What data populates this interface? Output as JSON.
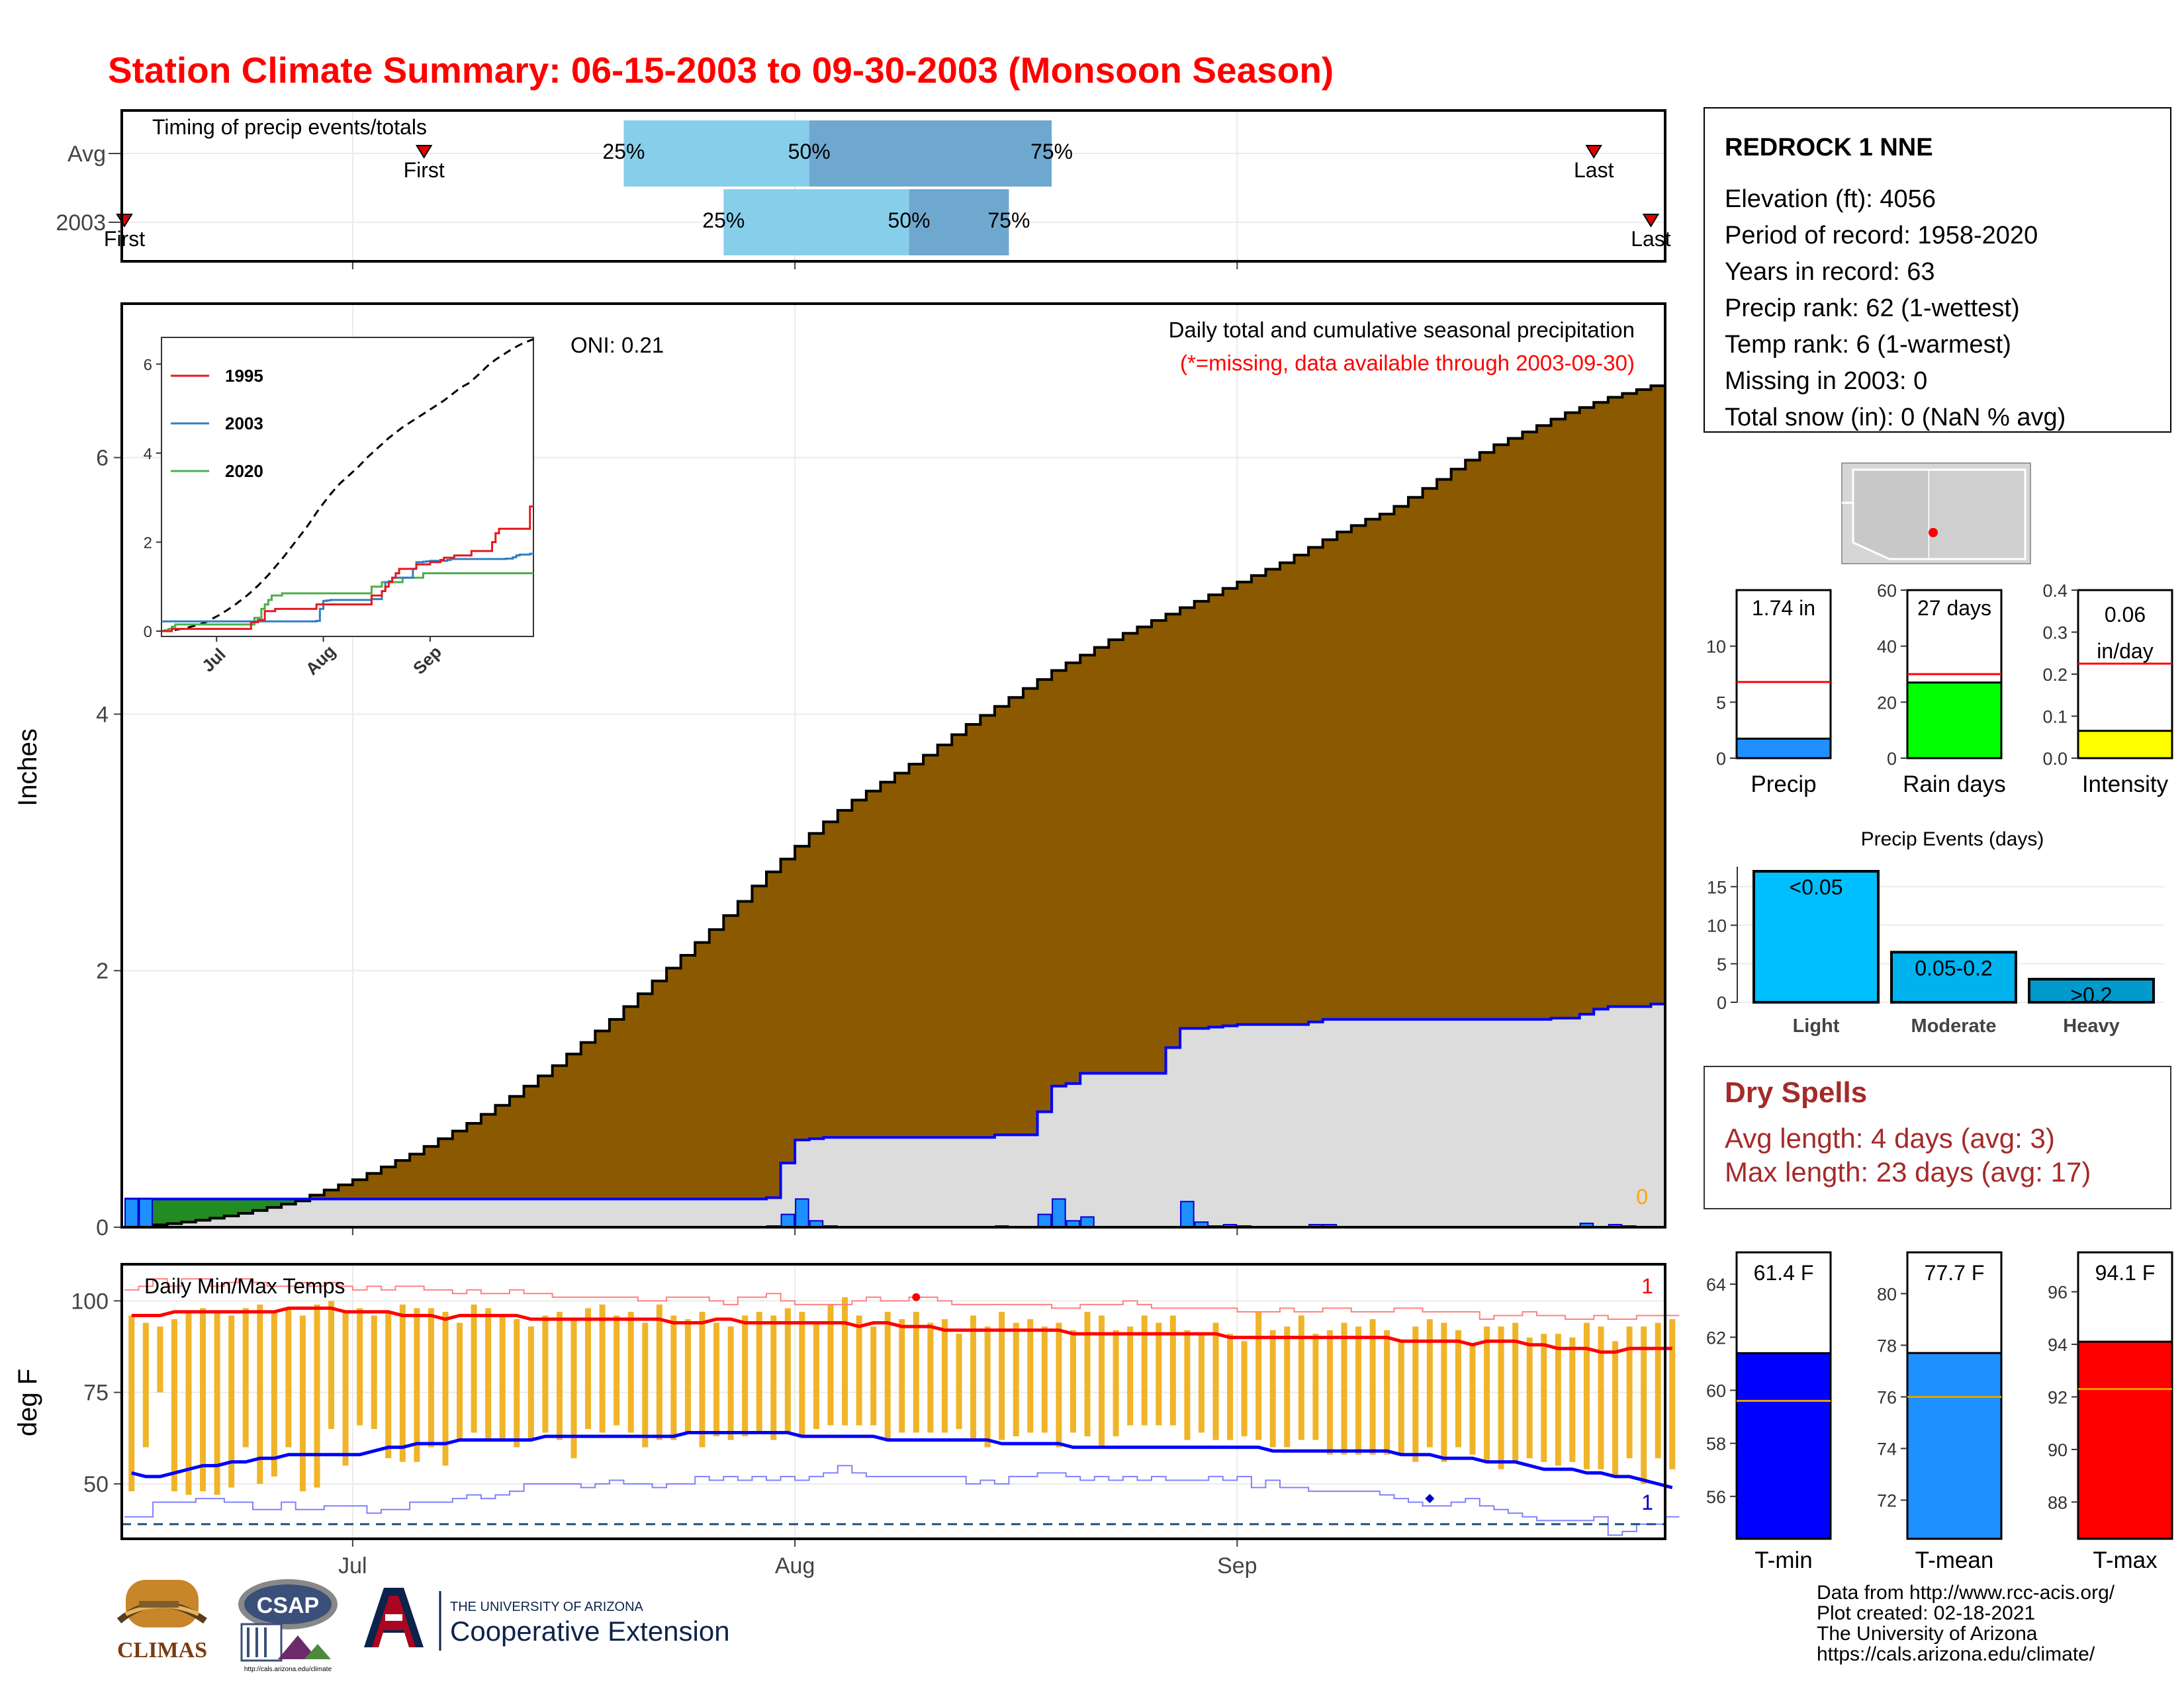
{
  "title": "Station Climate Summary: 06-15-2003 to 09-30-2003 (Monsoon Season)",
  "timing_panel": {
    "label": "Timing of precip events/totals",
    "rows": [
      {
        "name": "Avg",
        "first": "First",
        "last": "Last",
        "first_day": 21,
        "last_day": 103,
        "q25_day": 35,
        "q50_day": 48,
        "q75_day": 65,
        "q25_label": "25%",
        "q50_label": "50%",
        "q75_label": "75%"
      },
      {
        "name": "2003",
        "first": "First",
        "last": "Last",
        "first_day": 0,
        "last_day": 107,
        "q25_day": 42,
        "q50_day": 55,
        "q75_day": 62,
        "q25_label": "25%",
        "q50_label": "50%",
        "q75_label": "75%"
      }
    ]
  },
  "station_box": {
    "name": "REDROCK 1 NNE",
    "lines": [
      "Elevation (ft): 4056",
      "Period of record: 1958-2020",
      "Years in record: 63",
      "Precip rank: 62 (1-wettest)",
      "Temp rank: 6 (1-warmest)",
      "Missing in 2003: 0",
      "Total snow (in): 0 (NaN % avg)"
    ]
  },
  "main_panel": {
    "ylabel": "Inches",
    "annotation_title": "Daily total and cumulative seasonal precipitation",
    "annotation_missing": "(*=missing, data available through 2003-09-30)",
    "oni": "ONI: 0.21",
    "missing_count": "0",
    "yticks": [
      "0",
      "2",
      "4",
      "6"
    ],
    "xticks": [
      "Jul",
      "Aug",
      "Sep"
    ]
  },
  "inset": {
    "yticks": [
      "0",
      "2",
      "4",
      "6"
    ],
    "xticks": [
      "Jul",
      "Aug",
      "Sep"
    ],
    "legend": [
      {
        "name": "1995",
        "color": "#e31a1c"
      },
      {
        "name": "2003",
        "color": "#2f7fc1"
      },
      {
        "name": "2020",
        "color": "#4daf4a"
      }
    ]
  },
  "temp_panel": {
    "label": "Daily Min/Max Temps",
    "ylabel": "deg F",
    "yticks": [
      "50",
      "75",
      "100"
    ],
    "xticks": [
      "Jul",
      "Aug",
      "Sep"
    ],
    "record_high_count": "1",
    "record_low_count": "1"
  },
  "gauges": [
    {
      "label": "Precip",
      "value_text": "1.74 in",
      "value": 1.74,
      "avg": 6.8,
      "ymax": 15,
      "yticks": [
        "0",
        "5",
        "10"
      ],
      "color": "#1e90ff"
    },
    {
      "label": "Rain days",
      "value_text": "27 days",
      "value": 27,
      "avg": 30,
      "ymax": 60,
      "yticks": [
        "0",
        "20",
        "40",
        "60"
      ],
      "color": "#00ff00"
    },
    {
      "label": "Intensity",
      "value_text": "0.06 in/day",
      "value": 0.065,
      "avg": 0.225,
      "ymax": 0.4,
      "yticks": [
        "0.0",
        "0.1",
        "0.2",
        "0.3",
        "0.4"
      ],
      "color": "#ffff00"
    }
  ],
  "events": {
    "title": "Precip Events (days)",
    "categories": [
      "Light",
      "Moderate",
      "Heavy"
    ],
    "values": [
      17,
      6.5,
      3
    ],
    "labels": [
      "<0.05",
      "0.05-0.2",
      ">0.2"
    ],
    "yticks": [
      "0",
      "5",
      "10",
      "15"
    ]
  },
  "dry_spells": {
    "title": "Dry Spells",
    "avg": "Avg length: 4 days (avg: 3)",
    "max": "Max length: 23 days (avg: 17)"
  },
  "temp_gauges": [
    {
      "label": "T-min",
      "value_text": "61.4 F",
      "value": 61.4,
      "avg": 59.6,
      "ymin": 54.4,
      "ymax": 65.2,
      "yticks": [
        "56",
        "58",
        "60",
        "62",
        "64"
      ],
      "color": "#0000ff"
    },
    {
      "label": "T-mean",
      "value_text": "77.7 F",
      "value": 77.7,
      "avg": 76.0,
      "ymin": 70.5,
      "ymax": 81.6,
      "yticks": [
        "72",
        "74",
        "76",
        "78",
        "80"
      ],
      "color": "#1e90ff"
    },
    {
      "label": "T-max",
      "value_text": "94.1 F",
      "value": 94.1,
      "avg": 92.3,
      "ymin": 86.6,
      "ymax": 97.5,
      "yticks": [
        "88",
        "90",
        "92",
        "94",
        "96"
      ],
      "color": "#ff0000"
    }
  ],
  "credits": [
    "Data from http://www.rcc-acis.org/",
    "Plot created: 02-18-2021",
    "The University of Arizona",
    "https://cals.arizona.edu/climate/"
  ],
  "logos": {
    "climas": "CLIMAS",
    "csap": "CSAP",
    "ua": "THE UNIVERSITY OF ARIZONA",
    "coop": "Cooperative Extension",
    "csap_url": "http://cals.arizona.edu/climate"
  },
  "colors": {
    "title": "#ff0000",
    "cum_avg": "#8b5a00",
    "cum_2003": "#0000ff",
    "area_2003": "#dcdcdc",
    "tmax": "#ff0000",
    "tmin": "#0000ff",
    "range_bar": "#f0b429",
    "q_light": "#87ceeb",
    "q_dark": "#6fa8cf",
    "dry": "#a52a2a"
  },
  "chart_data": {
    "type": "area",
    "title": "Daily total and cumulative seasonal precipitation",
    "ylabel": "Inches",
    "ylim": [
      0,
      7.2
    ],
    "season_days": 108,
    "cumulative_avg": [
      0.004,
      0.01,
      0.018,
      0.028,
      0.04,
      0.054,
      0.07,
      0.088,
      0.108,
      0.13,
      0.154,
      0.18,
      0.205,
      0.25,
      0.29,
      0.33,
      0.37,
      0.42,
      0.47,
      0.52,
      0.57,
      0.63,
      0.69,
      0.75,
      0.81,
      0.88,
      0.95,
      1.02,
      1.1,
      1.18,
      1.26,
      1.35,
      1.44,
      1.53,
      1.62,
      1.72,
      1.82,
      1.92,
      2.02,
      2.12,
      2.22,
      2.32,
      2.43,
      2.54,
      2.66,
      2.77,
      2.87,
      2.97,
      3.07,
      3.16,
      3.25,
      3.33,
      3.4,
      3.47,
      3.54,
      3.61,
      3.68,
      3.76,
      3.84,
      3.92,
      3.99,
      4.06,
      4.13,
      4.2,
      4.27,
      4.34,
      4.4,
      4.46,
      4.52,
      4.58,
      4.63,
      4.68,
      4.73,
      4.78,
      4.83,
      4.88,
      4.93,
      4.98,
      5.03,
      5.08,
      5.13,
      5.18,
      5.24,
      5.3,
      5.36,
      5.42,
      5.47,
      5.52,
      5.56,
      5.62,
      5.69,
      5.76,
      5.83,
      5.91,
      5.98,
      6.04,
      6.1,
      6.15,
      6.2,
      6.25,
      6.3,
      6.35,
      6.39,
      6.43,
      6.47,
      6.5,
      6.53,
      6.56
    ],
    "cumulative_2003": [
      0.22,
      0.22,
      0.22,
      0.22,
      0.22,
      0.22,
      0.22,
      0.22,
      0.22,
      0.22,
      0.22,
      0.22,
      0.22,
      0.22,
      0.22,
      0.22,
      0.22,
      0.22,
      0.22,
      0.22,
      0.22,
      0.22,
      0.22,
      0.22,
      0.22,
      0.22,
      0.22,
      0.22,
      0.22,
      0.22,
      0.22,
      0.22,
      0.22,
      0.22,
      0.22,
      0.22,
      0.22,
      0.22,
      0.22,
      0.22,
      0.22,
      0.22,
      0.22,
      0.22,
      0.22,
      0.23,
      0.5,
      0.68,
      0.69,
      0.7,
      0.7,
      0.7,
      0.7,
      0.7,
      0.7,
      0.7,
      0.7,
      0.7,
      0.7,
      0.7,
      0.7,
      0.72,
      0.72,
      0.72,
      0.9,
      1.1,
      1.12,
      1.2,
      1.2,
      1.2,
      1.2,
      1.2,
      1.2,
      1.4,
      1.55,
      1.55,
      1.56,
      1.57,
      1.58,
      1.58,
      1.58,
      1.58,
      1.58,
      1.6,
      1.62,
      1.62,
      1.62,
      1.62,
      1.62,
      1.62,
      1.62,
      1.62,
      1.62,
      1.62,
      1.62,
      1.62,
      1.62,
      1.62,
      1.62,
      1.62,
      1.63,
      1.63,
      1.66,
      1.7,
      1.72,
      1.72,
      1.72,
      1.74
    ],
    "daily_2003": [
      0.22,
      0.22,
      0,
      0,
      0,
      0,
      0,
      0,
      0,
      0,
      0,
      0,
      0,
      0,
      0,
      0,
      0,
      0,
      0,
      0,
      0,
      0,
      0,
      0,
      0,
      0,
      0,
      0,
      0,
      0,
      0,
      0,
      0,
      0,
      0,
      0,
      0,
      0,
      0,
      0,
      0,
      0,
      0,
      0,
      0,
      0.01,
      0.1,
      0.22,
      0.05,
      0.01,
      0,
      0,
      0,
      0,
      0,
      0,
      0,
      0,
      0,
      0,
      0,
      0.01,
      0,
      0,
      0.1,
      0.22,
      0.05,
      0.08,
      0,
      0,
      0,
      0,
      0,
      0,
      0.2,
      0.04,
      0.01,
      0.02,
      0.01,
      0,
      0,
      0,
      0,
      0.02,
      0.02,
      0,
      0,
      0,
      0,
      0,
      0,
      0,
      0,
      0,
      0,
      0,
      0,
      0,
      0,
      0,
      0,
      0,
      0.03,
      0,
      0.02,
      0.01,
      0,
      0
    ],
    "tmax": [
      96,
      96,
      96,
      97,
      97,
      97,
      97,
      97,
      97,
      97,
      97,
      98,
      98,
      98,
      98,
      97,
      97,
      97,
      97,
      96,
      96,
      96,
      95,
      96,
      96,
      96,
      96,
      96,
      95,
      95,
      95,
      95,
      95,
      95,
      95,
      95,
      95,
      95,
      94,
      94,
      94,
      95,
      95,
      94,
      94,
      94,
      94,
      94,
      94,
      94,
      94,
      93,
      94,
      94,
      93,
      93,
      93,
      92,
      92,
      92,
      92,
      92,
      92,
      92,
      92,
      92,
      91,
      91,
      91,
      91,
      91,
      91,
      91,
      91,
      91,
      91,
      91,
      90,
      90,
      90,
      90,
      90,
      90,
      90,
      90,
      90,
      90,
      90,
      90,
      89,
      89,
      89,
      89,
      89,
      88,
      89,
      89,
      89,
      88,
      88,
      87,
      87,
      87,
      86,
      86,
      87,
      87,
      87,
      87
    ],
    "tmin": [
      53,
      52,
      52,
      53,
      54,
      55,
      55,
      56,
      56,
      57,
      57,
      58,
      58,
      58,
      58,
      58,
      58,
      59,
      60,
      60,
      61,
      61,
      61,
      62,
      62,
      62,
      62,
      62,
      62,
      63,
      63,
      63,
      63,
      63,
      63,
      63,
      63,
      63,
      63,
      64,
      64,
      64,
      64,
      64,
      64,
      64,
      64,
      63,
      63,
      63,
      63,
      63,
      63,
      62,
      62,
      62,
      62,
      62,
      62,
      62,
      62,
      61,
      61,
      61,
      61,
      61,
      60,
      60,
      60,
      60,
      60,
      60,
      60,
      60,
      60,
      60,
      60,
      60,
      60,
      60,
      59,
      59,
      59,
      59,
      59,
      59,
      59,
      59,
      59,
      58,
      58,
      58,
      57,
      57,
      57,
      56,
      56,
      56,
      55,
      54,
      54,
      54,
      53,
      53,
      52,
      52,
      51,
      50,
      49
    ],
    "daily_high": [
      96,
      94,
      93,
      95,
      97,
      98,
      97,
      96,
      98,
      99,
      97,
      98,
      96,
      99,
      100,
      97,
      98,
      96,
      97,
      99,
      98,
      98,
      97,
      94,
      99,
      98,
      96,
      95,
      93,
      96,
      97,
      95,
      98,
      99,
      96,
      97,
      94,
      99,
      96,
      95,
      97,
      94,
      93,
      96,
      97,
      96,
      98,
      97,
      94,
      99,
      101,
      96,
      93,
      97,
      95,
      97,
      94,
      95,
      91,
      96,
      93,
      97,
      94,
      95,
      93,
      94,
      92,
      97,
      96,
      92,
      93,
      96,
      94,
      96,
      92,
      91,
      94,
      91,
      89,
      97,
      92,
      93,
      96,
      91,
      92,
      94,
      93,
      95,
      92,
      89,
      93,
      95,
      94,
      92,
      88,
      93,
      93,
      94,
      90,
      91,
      91,
      90,
      94,
      93,
      89,
      93,
      93,
      94,
      95
    ],
    "daily_low": [
      48,
      60,
      75,
      48,
      47,
      48,
      47,
      49,
      60,
      50,
      52,
      60,
      48,
      49,
      65,
      55,
      66,
      65,
      57,
      56,
      56,
      60,
      55,
      62,
      64,
      62,
      62,
      60,
      62,
      64,
      62,
      57,
      65,
      64,
      66,
      64,
      60,
      62,
      62,
      64,
      60,
      63,
      62,
      63,
      64,
      62,
      64,
      63,
      65,
      66,
      66,
      66,
      66,
      62,
      64,
      64,
      64,
      64,
      65,
      62,
      60,
      62,
      63,
      64,
      64,
      60,
      64,
      63,
      60,
      63,
      66,
      66,
      66,
      66,
      62,
      64,
      62,
      62,
      63,
      62,
      60,
      60,
      62,
      62,
      58,
      58,
      58,
      58,
      58,
      58,
      56,
      60,
      56,
      60,
      58,
      56,
      54,
      56,
      57,
      56,
      55,
      56,
      54,
      54,
      52,
      57,
      50,
      57,
      54
    ],
    "record_high": [
      103,
      104,
      106,
      104,
      106,
      106,
      104,
      105,
      106,
      105,
      104,
      104,
      105,
      104,
      105,
      104,
      103,
      104,
      103,
      104,
      104,
      103,
      103,
      102,
      103,
      102,
      102,
      103,
      102,
      102,
      101,
      101,
      101,
      101,
      101,
      101,
      100,
      100,
      101,
      101,
      101,
      100,
      99,
      101,
      101,
      102,
      100,
      99,
      99,
      99,
      99,
      100,
      101,
      100,
      100,
      101,
      101,
      100,
      99,
      99,
      99,
      99,
      99,
      99,
      99,
      98,
      98,
      99,
      99,
      99,
      100,
      99,
      98,
      98,
      98,
      98,
      98,
      98,
      97,
      97,
      97,
      98,
      97,
      97,
      98,
      98,
      97,
      97,
      97,
      98,
      98,
      97,
      97,
      97,
      97,
      95,
      96,
      96,
      97,
      96,
      96,
      95,
      95,
      96,
      95,
      95,
      96,
      96,
      96
    ],
    "record_low": [
      41,
      41,
      45,
      45,
      45,
      46,
      46,
      45,
      45,
      43,
      43,
      45,
      43,
      43,
      44,
      44,
      44,
      42,
      43,
      43,
      45,
      45,
      45,
      46,
      47,
      46,
      47,
      48,
      50,
      50,
      50,
      50,
      49,
      50,
      51,
      50,
      50,
      49,
      50,
      50,
      52,
      51,
      52,
      51,
      52,
      51,
      52,
      51,
      52,
      53,
      55,
      53,
      52,
      52,
      52,
      52,
      52,
      52,
      52,
      50,
      51,
      50,
      52,
      52,
      53,
      53,
      52,
      51,
      52,
      51,
      52,
      51,
      52,
      51,
      51,
      51,
      52,
      51,
      52,
      49,
      51,
      49,
      49,
      48,
      48,
      48,
      48,
      48,
      47,
      46,
      45,
      44,
      44,
      45,
      46,
      44,
      43,
      42,
      41,
      40,
      40,
      40,
      40,
      41,
      36,
      37,
      39,
      39,
      41
    ],
    "inset_1995": [
      0,
      0,
      0,
      0.05,
      0.05,
      0.05,
      0.05,
      0.05,
      0.05,
      0.05,
      0.05,
      0.05,
      0.05,
      0.05,
      0.05,
      0.05,
      0.05,
      0.05,
      0.05,
      0.05,
      0.05,
      0.05,
      0.05,
      0.05,
      0.05,
      0.05,
      0.2,
      0.2,
      0.25,
      0.25,
      0.45,
      0.45,
      0.45,
      0.5,
      0.5,
      0.5,
      0.5,
      0.5,
      0.5,
      0.5,
      0.5,
      0.5,
      0.5,
      0.5,
      0.5,
      0.6,
      0.6,
      0.6,
      0.6,
      0.6,
      0.6,
      0.6,
      0.6,
      0.6,
      0.6,
      0.6,
      0.6,
      0.6,
      0.6,
      0.6,
      0.6,
      0.8,
      0.8,
      0.8,
      0.9,
      1.0,
      1.1,
      1.2,
      1.3,
      1.4,
      1.4,
      1.4,
      1.4,
      1.4,
      1.5,
      1.5,
      1.5,
      1.5,
      1.55,
      1.55,
      1.55,
      1.6,
      1.65,
      1.65,
      1.65,
      1.7,
      1.7,
      1.7,
      1.7,
      1.7,
      1.8,
      1.8,
      1.8,
      1.8,
      1.8,
      1.8,
      2.0,
      2.2,
      2.3,
      2.3,
      2.3,
      2.3,
      2.3,
      2.3,
      2.3,
      2.3,
      2.3,
      2.8
    ],
    "inset_2020": [
      0,
      0.02,
      0.05,
      0.1,
      0.15,
      0.15,
      0.15,
      0.15,
      0.15,
      0.15,
      0.15,
      0.15,
      0.15,
      0.15,
      0.15,
      0.15,
      0.15,
      0.15,
      0.15,
      0.15,
      0.15,
      0.15,
      0.15,
      0.15,
      0.15,
      0.15,
      0.15,
      0.3,
      0.3,
      0.5,
      0.6,
      0.7,
      0.8,
      0.8,
      0.8,
      0.85,
      0.85,
      0.85,
      0.85,
      0.85,
      0.85,
      0.85,
      0.85,
      0.85,
      0.85,
      0.85,
      0.85,
      0.85,
      0.85,
      0.85,
      0.85,
      0.85,
      0.85,
      0.85,
      0.85,
      0.85,
      0.85,
      0.85,
      0.85,
      0.85,
      0.85,
      1.0,
      1.0,
      1.0,
      1.1,
      1.1,
      1.1,
      1.1,
      1.1,
      1.1,
      1.2,
      1.2,
      1.2,
      1.2,
      1.2,
      1.2,
      1.3,
      1.3,
      1.3,
      1.3,
      1.3,
      1.3,
      1.3,
      1.3,
      1.3,
      1.3,
      1.3,
      1.3,
      1.3,
      1.3,
      1.3,
      1.3,
      1.3,
      1.3,
      1.3,
      1.3,
      1.3,
      1.3,
      1.3,
      1.3,
      1.3,
      1.3,
      1.3,
      1.3,
      1.3,
      1.3,
      1.3,
      1.3
    ]
  }
}
